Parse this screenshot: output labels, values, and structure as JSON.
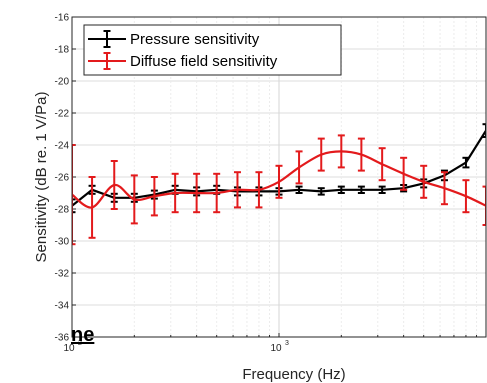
{
  "chart_data": {
    "type": "line",
    "xlabel": "Frequency (Hz)",
    "ylabel": "Sensitivity (dB re. 1 V/Pa)",
    "xscale": "log",
    "xlim": [
      100,
      10000
    ],
    "ylim": [
      -36,
      -16
    ],
    "grid": true,
    "legend_position": "top-left",
    "y_ticks": [
      -36,
      -34,
      -32,
      -30,
      -28,
      -26,
      -24,
      -22,
      -20,
      -18,
      -16
    ],
    "x_ticks": [
      {
        "value": 100,
        "base": "10",
        "exp": "2"
      },
      {
        "value": 1000,
        "base": "10",
        "exp": "3"
      }
    ],
    "series": [
      {
        "name": "Pressure sensitivity",
        "color": "#000000",
        "x": [
          100,
          125,
          160,
          200,
          250,
          315,
          400,
          500,
          630,
          800,
          1000,
          1250,
          1600,
          2000,
          2500,
          3150,
          4000,
          5000,
          6300,
          8000,
          10000
        ],
        "y": [
          -27.8,
          -26.8,
          -27.3,
          -27.3,
          -27.1,
          -26.8,
          -26.9,
          -26.8,
          -26.9,
          -26.9,
          -26.9,
          -26.8,
          -26.9,
          -26.8,
          -26.8,
          -26.8,
          -26.7,
          -26.4,
          -25.9,
          -25.1,
          -23.1
        ],
        "err": [
          0.4,
          0.25,
          0.25,
          0.25,
          0.25,
          0.25,
          0.25,
          0.25,
          0.25,
          0.25,
          0.2,
          0.2,
          0.2,
          0.2,
          0.2,
          0.2,
          0.2,
          0.25,
          0.3,
          0.3,
          0.4
        ]
      },
      {
        "name": "Diffuse field sensitivity",
        "color": "#e31a1c",
        "x": [
          100,
          125,
          160,
          200,
          250,
          315,
          400,
          500,
          630,
          800,
          1000,
          1250,
          1600,
          2000,
          2500,
          3150,
          4000,
          5000,
          6300,
          8000,
          10000
        ],
        "y": [
          -27.1,
          -27.9,
          -26.5,
          -27.4,
          -27.2,
          -27.0,
          -27.0,
          -27.0,
          -26.8,
          -26.8,
          -26.3,
          -25.4,
          -24.6,
          -24.4,
          -24.6,
          -25.2,
          -25.8,
          -26.3,
          -26.7,
          -27.2,
          -27.8
        ],
        "err": [
          3.1,
          1.9,
          1.5,
          1.5,
          1.2,
          1.2,
          1.2,
          1.2,
          1.1,
          1.1,
          1.0,
          1.0,
          1.0,
          1.0,
          1.0,
          1.0,
          1.0,
          1.0,
          1.0,
          1.0,
          1.2
        ]
      }
    ]
  },
  "fragment_text": "ne"
}
